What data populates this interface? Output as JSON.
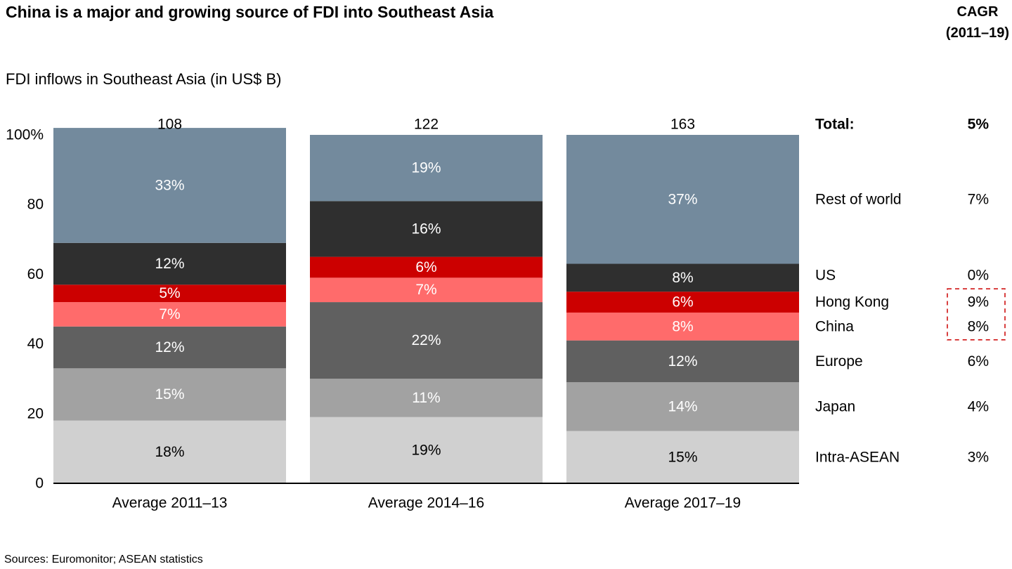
{
  "title": "China is a major and growing source of FDI into Southeast Asia",
  "cagr_header": {
    "line1": "CAGR",
    "line2": "(2011–19)"
  },
  "subtitle": "FDI inflows in Southeast Asia (in US$ B)",
  "source": "Sources: Euromonitor; ASEAN statistics",
  "colors": {
    "intra_asean": "#d0d0d0",
    "japan": "#a2a2a2",
    "europe": "#606060",
    "china": "#ff6b6b",
    "hong_kong": "#cc0000",
    "us": "#2f2f2f",
    "rest_of_world": "#738a9d",
    "highlight_box": "#cc0000"
  },
  "chart_data": {
    "type": "bar",
    "stacked": true,
    "normalized": true,
    "categories": [
      "Average 2011–13",
      "Average 2014–16",
      "Average 2017–19"
    ],
    "totals": [
      "108",
      "122",
      "163"
    ],
    "ylim": [
      0,
      100
    ],
    "yticks": [
      0,
      20,
      40,
      60,
      80,
      100
    ],
    "ytick_labels": [
      "0",
      "20",
      "40",
      "60",
      "80",
      "100%"
    ],
    "series": [
      {
        "name": "Intra-ASEAN",
        "key": "intra_asean",
        "values": [
          18,
          19,
          15
        ],
        "labels": [
          "18%",
          "19%",
          "15%"
        ],
        "cagr": "3%"
      },
      {
        "name": "Japan",
        "key": "japan",
        "values": [
          15,
          11,
          14
        ],
        "labels": [
          "15%",
          "11%",
          "14%"
        ],
        "cagr": "4%"
      },
      {
        "name": "Europe",
        "key": "europe",
        "values": [
          12,
          22,
          12
        ],
        "labels": [
          "12%",
          "22%",
          "12%"
        ],
        "cagr": "6%"
      },
      {
        "name": "China",
        "key": "china",
        "values": [
          7,
          7,
          8
        ],
        "labels": [
          "7%",
          "7%",
          "8%"
        ],
        "cagr": "8%",
        "highlight": true
      },
      {
        "name": "Hong Kong",
        "key": "hong_kong",
        "values": [
          5,
          6,
          6
        ],
        "labels": [
          "5%",
          "6%",
          "6%"
        ],
        "cagr": "9%",
        "highlight": true
      },
      {
        "name": "US",
        "key": "us",
        "values": [
          12,
          16,
          8
        ],
        "labels": [
          "12%",
          "16%",
          "8%"
        ],
        "cagr": "0%"
      },
      {
        "name": "Rest of world",
        "key": "rest_of_world",
        "values": [
          33,
          19,
          37
        ],
        "labels": [
          "33%",
          "19%",
          "37%"
        ],
        "cagr": "7%"
      }
    ],
    "total_row": {
      "label": "Total:",
      "cagr": "5%"
    },
    "grid": false,
    "legend": "right"
  }
}
